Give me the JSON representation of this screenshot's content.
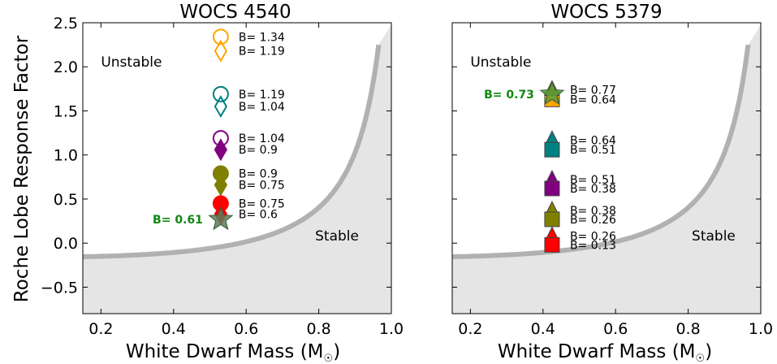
{
  "figure": {
    "ylabel": "Roche Lobe Response Factor",
    "xlabel_main": "White Dwarf Mass (M",
    "xlabel_sub": "☉",
    "xlabel_close": ")"
  },
  "chart_data": [
    {
      "type": "scatter",
      "title": "WOCS 4540",
      "xlim": [
        0.15,
        1.0
      ],
      "ylim": [
        -0.8,
        2.5
      ],
      "xticks": [
        0.2,
        0.4,
        0.6,
        0.8,
        1.0
      ],
      "xtick_labels": [
        "0.2",
        "0.4",
        "0.6",
        "0.8",
        "1.0"
      ],
      "yticks": [
        -0.5,
        0.0,
        0.5,
        1.0,
        1.5,
        2.0,
        2.5
      ],
      "ytick_labels": [
        "−0.5",
        "0.0",
        "0.5",
        "1.0",
        "1.5",
        "2.0",
        "2.5"
      ],
      "region_labels": [
        {
          "text": "Unstable",
          "x": 0.2,
          "y": 2.0
        },
        {
          "text": "Stable",
          "x": 0.79,
          "y": 0.03
        }
      ],
      "star": {
        "x": 0.53,
        "y": 0.27,
        "label": "B= 0.61",
        "color": "#5a7d5a"
      },
      "series": [
        {
          "marker": "circle",
          "filled": false,
          "color": "#ffa500",
          "x": 0.53,
          "y": 2.34,
          "label": "B= 1.34"
        },
        {
          "marker": "diamond",
          "filled": false,
          "color": "#ffa500",
          "x": 0.53,
          "y": 2.18,
          "label": "B= 1.19"
        },
        {
          "marker": "circle",
          "filled": false,
          "color": "#008080",
          "x": 0.53,
          "y": 1.69,
          "label": "B= 1.19"
        },
        {
          "marker": "diamond",
          "filled": false,
          "color": "#008080",
          "x": 0.53,
          "y": 1.55,
          "label": "B= 1.04"
        },
        {
          "marker": "circle",
          "filled": false,
          "color": "#800080",
          "x": 0.53,
          "y": 1.19,
          "label": "B= 1.04"
        },
        {
          "marker": "diamond",
          "filled": true,
          "color": "#800080",
          "x": 0.53,
          "y": 1.06,
          "label": "B= 0.9"
        },
        {
          "marker": "circle",
          "filled": true,
          "color": "#808000",
          "x": 0.53,
          "y": 0.79,
          "label": "B= 0.9"
        },
        {
          "marker": "diamond",
          "filled": true,
          "color": "#808000",
          "x": 0.53,
          "y": 0.66,
          "label": "B= 0.75"
        },
        {
          "marker": "circle",
          "filled": true,
          "color": "#ff0000",
          "x": 0.53,
          "y": 0.45,
          "label": "B= 0.75"
        },
        {
          "marker": "diamond",
          "filled": true,
          "color": "#ff0000",
          "x": 0.53,
          "y": 0.33,
          "label": "B= 0.6"
        }
      ]
    },
    {
      "type": "scatter",
      "title": "WOCS 5379",
      "xlim": [
        0.15,
        1.0
      ],
      "ylim": [
        -0.8,
        2.5
      ],
      "xticks": [
        0.2,
        0.4,
        0.6,
        0.8,
        1.0
      ],
      "xtick_labels": [
        "0.2",
        "0.4",
        "0.6",
        "0.8",
        "1.0"
      ],
      "region_labels": [
        {
          "text": "Unstable",
          "x": 0.2,
          "y": 2.0
        },
        {
          "text": "Stable",
          "x": 0.81,
          "y": 0.03
        }
      ],
      "star": {
        "x": 0.425,
        "y": 1.69,
        "label": "B= 0.73",
        "color": "#5a9a3a"
      },
      "series": [
        {
          "marker": "square",
          "filled": true,
          "color": "#ffa500",
          "x": 0.425,
          "y": 1.63,
          "label": "B= 0.64"
        },
        {
          "marker": "triangle",
          "filled": true,
          "color": "#808000",
          "x": 0.425,
          "y": 1.74,
          "label": "B= 0.77"
        },
        {
          "marker": "triangle",
          "filled": true,
          "color": "#008080",
          "x": 0.425,
          "y": 1.17,
          "label": "B= 0.64"
        },
        {
          "marker": "square",
          "filled": true,
          "color": "#008080",
          "x": 0.425,
          "y": 1.06,
          "label": "B= 0.51"
        },
        {
          "marker": "triangle",
          "filled": true,
          "color": "#800080",
          "x": 0.425,
          "y": 0.72,
          "label": "B= 0.51"
        },
        {
          "marker": "square",
          "filled": true,
          "color": "#800080",
          "x": 0.425,
          "y": 0.62,
          "label": "B= 0.38"
        },
        {
          "marker": "triangle",
          "filled": true,
          "color": "#808000",
          "x": 0.425,
          "y": 0.37,
          "label": "B= 0.38"
        },
        {
          "marker": "square",
          "filled": true,
          "color": "#808000",
          "x": 0.425,
          "y": 0.27,
          "label": "B= 0.26"
        },
        {
          "marker": "triangle",
          "filled": true,
          "color": "#ff0000",
          "x": 0.425,
          "y": 0.08,
          "label": "B= 0.26"
        },
        {
          "marker": "square",
          "filled": true,
          "color": "#ff0000",
          "x": 0.425,
          "y": -0.02,
          "label": "B= 0.13"
        }
      ],
      "curve_color": "#aaaaaa",
      "fill_color": "#e5e5e5"
    }
  ]
}
